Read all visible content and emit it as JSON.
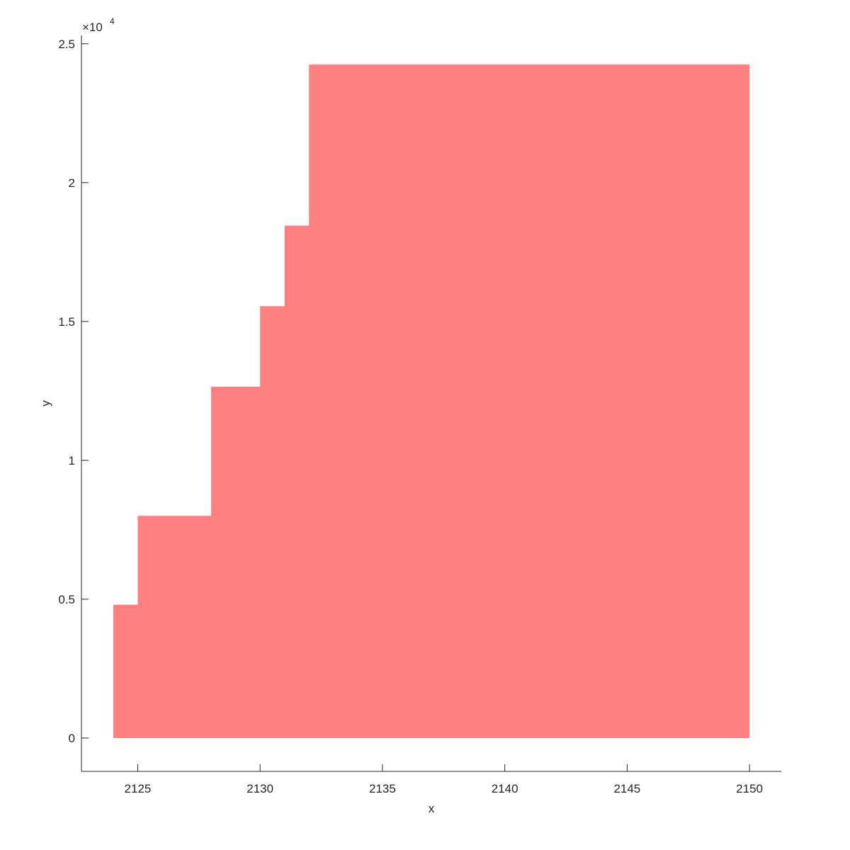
{
  "chart_data": {
    "type": "area",
    "title": "",
    "xlabel": "x",
    "ylabel": "y",
    "xlim": [
      2122.7,
      2151.3
    ],
    "ylim": [
      -1200,
      25300
    ],
    "grid": false,
    "legend": "none",
    "fill_color": "#FF8080",
    "step_boundaries_x": [
      2124,
      2125,
      2128,
      2130,
      2131,
      2132,
      2150
    ],
    "step_heights_y": [
      4800,
      8000,
      12650,
      15550,
      18450,
      24250
    ],
    "x_ticks": [
      2125,
      2130,
      2135,
      2140,
      2145,
      2150
    ],
    "x_tick_labels": [
      "2125",
      "2130",
      "2135",
      "2140",
      "2145",
      "2150"
    ],
    "y_ticks": [
      0,
      5000,
      10000,
      15000,
      20000,
      25000
    ],
    "y_tick_labels": [
      "0",
      "0.5",
      "1",
      "1.5",
      "2",
      "2.5"
    ],
    "y_exponent_prefix": "×10",
    "y_exponent_power": "4"
  }
}
